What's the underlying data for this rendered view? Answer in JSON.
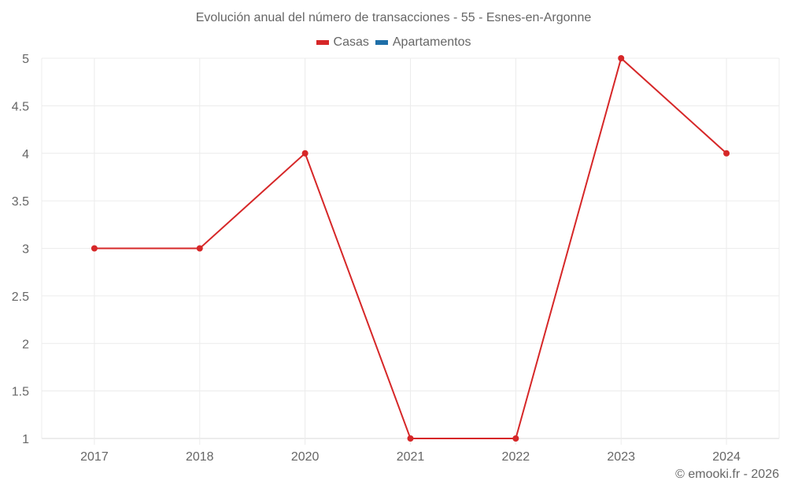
{
  "chart_data": {
    "type": "line",
    "title": "Evolución anual del número de transacciones - 55 - Esnes-en-Argonne",
    "categories": [
      "2017",
      "2018",
      "2020",
      "2021",
      "2022",
      "2023",
      "2024"
    ],
    "series": [
      {
        "name": "Casas",
        "color": "#d62728",
        "values": [
          3,
          3,
          4,
          1,
          1,
          5,
          4
        ]
      },
      {
        "name": "Apartamentos",
        "color": "#1f6fa8",
        "values": []
      }
    ],
    "xlabel": "",
    "ylabel": "",
    "ylim": [
      1,
      5
    ],
    "yticks": [
      "1",
      "1.5",
      "2",
      "2.5",
      "3",
      "3.5",
      "4",
      "4.5",
      "5"
    ],
    "grid": true,
    "legend_position": "top"
  },
  "legend": {
    "items": [
      {
        "label": "Casas",
        "color": "#d62728"
      },
      {
        "label": "Apartamentos",
        "color": "#1f6fa8"
      }
    ]
  },
  "credit": "© emooki.fr - 2026"
}
